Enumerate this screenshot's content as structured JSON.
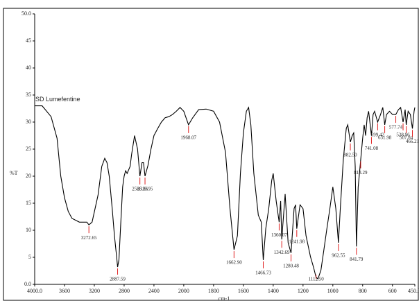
{
  "chart_data": {
    "type": "line",
    "x_label": "cm-1",
    "y_label": "%T",
    "x": [
      4000,
      3900,
      3780,
      3700,
      3650,
      3600,
      3550,
      3500,
      3400,
      3300,
      3272.65,
      3230,
      3150,
      3100,
      3060,
      3030,
      3000,
      2960,
      2930,
      2900,
      2887.59,
      2870,
      2850,
      2820,
      2800,
      2780,
      2760,
      2720,
      2700,
      2660,
      2620,
      2588.36,
      2560,
      2540,
      2519.95,
      2480,
      2440,
      2400,
      2350,
      2300,
      2250,
      2200,
      2150,
      2100,
      2050,
      2000,
      1968.07,
      1940,
      1900,
      1850,
      1800,
      1760,
      1720,
      1690,
      1662.9,
      1640,
      1620,
      1600,
      1580,
      1565,
      1550,
      1530,
      1500,
      1480,
      1466.73,
      1450,
      1430,
      1410,
      1400,
      1380,
      1360.07,
      1350,
      1342.69,
      1320,
      1300,
      1280.48,
      1260,
      1250,
      1241.98,
      1220,
      1200,
      1180,
      1150,
      1130,
      1112.5,
      1100,
      1080,
      1060,
      1040,
      1020,
      1000,
      980,
      962.55,
      950,
      930,
      910,
      900,
      882.5,
      870,
      860,
      850,
      841.79,
      830,
      813.29,
      800,
      790,
      780,
      770,
      760,
      741.08,
      730,
      720,
      699.42,
      680,
      665,
      651.98,
      640,
      620,
      600,
      577.74,
      560,
      545,
      528.96,
      515,
      507.84,
      495,
      480,
      466.21,
      455,
      450
    ],
    "series": [
      {
        "name": "SD Lumefentine",
        "color": "#000000",
        "values": [
          33.0,
          33.0,
          31.0,
          27.0,
          20.0,
          16.0,
          13.5,
          12.2,
          11.5,
          11.5,
          11.0,
          11.5,
          16.5,
          21.8,
          23.3,
          22.5,
          20.0,
          14.0,
          9.0,
          5.0,
          3.2,
          4.5,
          10.0,
          18.0,
          20.0,
          21.0,
          20.5,
          21.8,
          24.0,
          27.5,
          25.0,
          20.0,
          22.5,
          22.5,
          20.0,
          22.0,
          25.0,
          27.5,
          28.8,
          30.0,
          30.8,
          31.0,
          31.4,
          32.0,
          32.7,
          32.0,
          29.5,
          30.8,
          32.3,
          32.4,
          32.0,
          30.0,
          24.4,
          14.0,
          6.4,
          9.0,
          20.5,
          28.0,
          32.0,
          32.7,
          29.5,
          20.5,
          12.8,
          11.5,
          4.5,
          10.3,
          14.0,
          19.2,
          20.5,
          15.4,
          11.5,
          15.4,
          8.3,
          16.7,
          7.7,
          5.8,
          14.0,
          14.7,
          10.3,
          14.7,
          14.0,
          9.0,
          5.1,
          3.2,
          1.3,
          1.0,
          2.6,
          6.4,
          10.3,
          14.0,
          18.0,
          14.0,
          7.7,
          14.0,
          23.0,
          28.8,
          29.5,
          26.3,
          27.5,
          28.0,
          21.8,
          7.0,
          18.0,
          23.0,
          27.0,
          29.5,
          27.5,
          30.8,
          32.0,
          27.5,
          31.4,
          32.0,
          30.0,
          31.4,
          32.7,
          29.5,
          31.4,
          32.0,
          31.4,
          31.4,
          32.3,
          32.7,
          30.0,
          32.3,
          29.5,
          32.0,
          31.4,
          28.8,
          32.0,
          32.7
        ]
      }
    ],
    "peaks": [
      {
        "value": 3272.65,
        "label": "3272.65"
      },
      {
        "value": 2887.59,
        "label": "2887.59"
      },
      {
        "value": 2588.36,
        "label": "2588.36"
      },
      {
        "value": 2519.95,
        "label": "2519.95"
      },
      {
        "value": 1968.07,
        "label": "1968.07"
      },
      {
        "value": 1662.9,
        "label": "1662.90"
      },
      {
        "value": 1466.73,
        "label": "1466.73"
      },
      {
        "value": 1360.07,
        "label": "1360.07"
      },
      {
        "value": 1342.69,
        "label": "1342.69"
      },
      {
        "value": 1280.48,
        "label": "1280.48"
      },
      {
        "value": 1241.98,
        "label": "1241.98"
      },
      {
        "value": 1112.5,
        "label": "1112.50"
      },
      {
        "value": 962.55,
        "label": "962.55"
      },
      {
        "value": 882.5,
        "label": "882.50"
      },
      {
        "value": 841.79,
        "label": "841.79"
      },
      {
        "value": 813.29,
        "label": "813.29"
      },
      {
        "value": 741.08,
        "label": "741.08"
      },
      {
        "value": 699.42,
        "label": "699.42"
      },
      {
        "value": 651.98,
        "label": "651.98"
      },
      {
        "value": 577.74,
        "label": "577.74"
      },
      {
        "value": 528.96,
        "label": "528.96"
      },
      {
        "value": 507.84,
        "label": "507.84"
      },
      {
        "value": 466.21,
        "label": "466.21"
      }
    ],
    "peak_color": "#e02020",
    "xlim": [
      4000,
      450
    ],
    "xticks": [
      {
        "value": 4000,
        "label": "4000.0"
      },
      3600,
      3200,
      2800,
      2400,
      2000,
      1800,
      1600,
      1400,
      1200,
      1000,
      800,
      600,
      {
        "value": 450,
        "label": "450.0"
      }
    ],
    "ylim": [
      0,
      50
    ],
    "yticks": [
      {
        "value": 0,
        "label": "0.0"
      },
      5,
      10,
      15,
      20,
      25,
      30,
      35,
      40,
      45,
      {
        "value": 50,
        "label": "50.0"
      }
    ]
  }
}
